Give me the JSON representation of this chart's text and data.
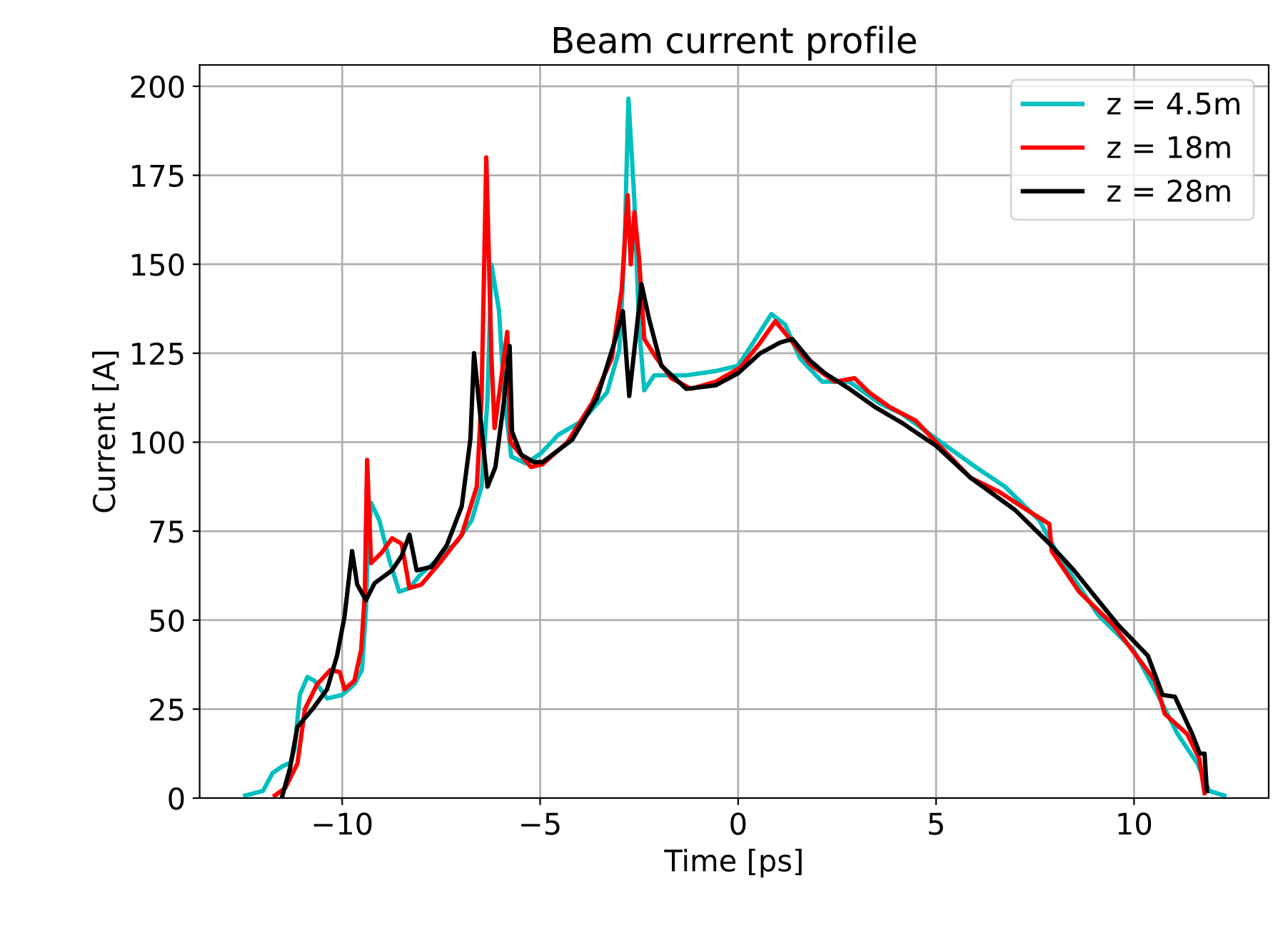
{
  "chart_data": {
    "type": "line",
    "title": "Beam current profile",
    "xlabel": "Time [ps]",
    "ylabel": "Current [A]",
    "xlim": [
      -13.6,
      13.4
    ],
    "xticks": [
      -10,
      -5,
      0,
      5,
      10
    ],
    "ylim": [
      0,
      206
    ],
    "yticks": [
      0,
      25,
      50,
      75,
      100,
      125,
      150,
      175,
      200
    ],
    "grid": true,
    "legend": "top right",
    "line_style": "solid",
    "marker": "none",
    "series": [
      {
        "name": "z = 4.5m",
        "color": "#00bfbf",
        "x": [
          -12.45,
          -12.0,
          -11.76,
          -11.5,
          -11.3,
          -11.2,
          -11.07,
          -10.88,
          -10.7,
          -10.38,
          -10.0,
          -9.69,
          -9.5,
          -9.4,
          -9.35,
          -9.27,
          -9.06,
          -8.81,
          -8.56,
          -8.3,
          -8.05,
          -7.6,
          -7.1,
          -6.73,
          -6.48,
          -6.33,
          -6.23,
          -6.04,
          -5.9,
          -5.73,
          -5.35,
          -4.97,
          -4.55,
          -3.94,
          -3.31,
          -3.0,
          -2.87,
          -2.77,
          -2.62,
          -2.5,
          -2.37,
          -2.12,
          -1.31,
          -0.56,
          0.0,
          0.44,
          0.84,
          1.19,
          1.56,
          2.12,
          2.81,
          3.56,
          4.13,
          5.0,
          6.0,
          6.74,
          7.61,
          8.1,
          9.1,
          9.98,
          10.6,
          11.1,
          11.6,
          11.9,
          12.28
        ],
        "values": [
          0.7,
          2,
          7,
          9,
          10,
          14,
          29,
          34,
          33,
          28,
          29,
          32,
          36,
          53,
          71,
          83,
          78,
          67,
          58,
          59,
          62.5,
          67,
          72,
          78,
          87.5,
          112,
          150,
          137,
          112,
          96,
          94,
          97,
          102,
          106,
          114,
          126,
          154,
          196.5,
          168,
          132,
          114.6,
          118.8,
          118.8,
          120,
          121.5,
          129,
          136,
          133,
          123.6,
          117,
          117,
          111,
          108,
          101,
          93,
          87.5,
          78,
          68,
          51.4,
          41.7,
          29,
          18,
          9.7,
          2,
          0.7
        ]
      },
      {
        "name": "z = 18m",
        "color": "#ff0000",
        "x": [
          -11.7,
          -11.44,
          -11.13,
          -10.94,
          -10.63,
          -10.3,
          -10.06,
          -9.94,
          -9.69,
          -9.52,
          -9.43,
          -9.37,
          -9.27,
          -9.0,
          -8.74,
          -8.5,
          -8.3,
          -8.0,
          -7.49,
          -6.98,
          -6.6,
          -6.48,
          -6.36,
          -6.23,
          -6.15,
          -5.98,
          -5.83,
          -5.75,
          -5.23,
          -4.94,
          -4.31,
          -3.69,
          -3.19,
          -2.94,
          -2.79,
          -2.71,
          -2.62,
          -2.5,
          -2.37,
          -2.06,
          -1.69,
          -1.19,
          -0.56,
          0.06,
          0.56,
          0.94,
          1.31,
          1.81,
          2.44,
          2.94,
          3.31,
          3.81,
          4.49,
          5.0,
          5.87,
          6.6,
          7.36,
          7.86,
          7.92,
          8.61,
          9.48,
          10.53,
          10.78,
          11.34,
          11.65,
          11.78
        ],
        "values": [
          0.7,
          2.8,
          9.7,
          25,
          32,
          36,
          35.4,
          30.6,
          33,
          41.7,
          57,
          95,
          66,
          69,
          73,
          71.5,
          59,
          60,
          66.7,
          74,
          87.5,
          112.5,
          180,
          123.6,
          104,
          118,
          131,
          100,
          93,
          93.8,
          100,
          111,
          123.6,
          143,
          169.4,
          150,
          164.6,
          151.4,
          129,
          123.6,
          118,
          115,
          117,
          121,
          128,
          134,
          129,
          122,
          117,
          118,
          114,
          110,
          106,
          100,
          90,
          86,
          80.5,
          77,
          69.4,
          58,
          48.6,
          33,
          23.6,
          18,
          11,
          1.4
        ]
      },
      {
        "name": "z = 28m",
        "color": "#000000",
        "x": [
          -11.51,
          -11.32,
          -11.13,
          -10.75,
          -10.38,
          -10.13,
          -9.94,
          -9.75,
          -9.62,
          -9.4,
          -9.18,
          -8.74,
          -8.5,
          -8.3,
          -8.12,
          -7.74,
          -7.36,
          -6.98,
          -6.76,
          -6.67,
          -6.48,
          -6.33,
          -6.13,
          -5.92,
          -5.77,
          -5.71,
          -5.48,
          -5.16,
          -4.94,
          -4.19,
          -3.56,
          -3.13,
          -2.91,
          -2.75,
          -2.56,
          -2.44,
          -2.25,
          -1.94,
          -1.31,
          -0.56,
          0.0,
          0.56,
          1.06,
          1.37,
          1.81,
          2.19,
          2.81,
          3.44,
          4.13,
          5.0,
          5.87,
          6.99,
          7.86,
          8.48,
          9.6,
          10.35,
          10.72,
          11.03,
          11.47,
          11.66,
          11.78,
          11.84
        ],
        "values": [
          0.7,
          8.3,
          20,
          25,
          30.6,
          40,
          51,
          69.4,
          60,
          55.6,
          60.4,
          64,
          68,
          74,
          64,
          65,
          71,
          82,
          101,
          125,
          104,
          87.5,
          93,
          111,
          127,
          103,
          96.5,
          94.4,
          94.4,
          100.7,
          112.5,
          127.8,
          136.8,
          113,
          132,
          144.4,
          134.7,
          121.5,
          115,
          116,
          119.4,
          125,
          128,
          129,
          123,
          119.4,
          115,
          110,
          105.5,
          99,
          90,
          81,
          71.5,
          64,
          48.6,
          40,
          29,
          28.5,
          18,
          12.5,
          12.5,
          2
        ]
      }
    ]
  }
}
